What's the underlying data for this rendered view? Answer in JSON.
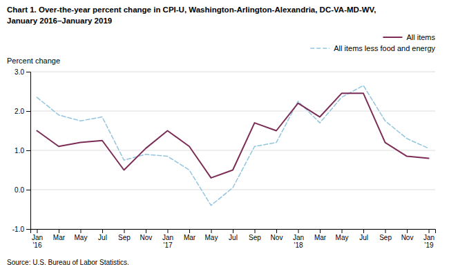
{
  "chart_data": {
    "type": "line",
    "title": "Chart 1. Over-the-year percent change in CPI-U, Washington-Arlington-Alexandria, DC-VA-MD-WV,",
    "subtitle": "January 2016–January 2019",
    "y_label": "Percent change",
    "source": "Source: U.S. Bureau of Labor Statistics.",
    "categories": [
      "Jan\n'16",
      "Mar",
      "May",
      "Jul",
      "Sep",
      "Nov",
      "Jan\n'17",
      "Mar",
      "May",
      "Jul",
      "Sep",
      "Nov",
      "Jan\n'18",
      "Mar",
      "May",
      "Jul",
      "Sep",
      "Nov",
      "Jan\n'19"
    ],
    "series": [
      {
        "name": "All items",
        "color": "#7B2D55",
        "line_style": "solid",
        "values": [
          1.5,
          1.1,
          1.2,
          1.25,
          0.5,
          1.05,
          1.5,
          1.1,
          0.3,
          0.5,
          1.7,
          1.5,
          2.2,
          1.85,
          2.45,
          2.45,
          1.2,
          0.85,
          0.8
        ]
      },
      {
        "name": "All items less food and energy",
        "color": "#92C5DE",
        "line_style": "dashed",
        "values": [
          2.35,
          1.9,
          1.75,
          1.85,
          0.75,
          0.9,
          0.85,
          0.5,
          -0.4,
          0.05,
          1.1,
          1.2,
          2.25,
          1.7,
          2.35,
          2.65,
          1.75,
          1.3,
          1.05
        ]
      }
    ],
    "ylim": [
      -1.0,
      3.0
    ],
    "yticks": [
      {
        "value": -1.0,
        "label": "-1.0"
      },
      {
        "value": 0.0,
        "label": "0.0"
      },
      {
        "value": 1.0,
        "label": "1.0"
      },
      {
        "value": 2.0,
        "label": "2.0"
      },
      {
        "value": 3.0,
        "label": "3.0"
      }
    ],
    "grid": true,
    "legend": "upper right"
  }
}
